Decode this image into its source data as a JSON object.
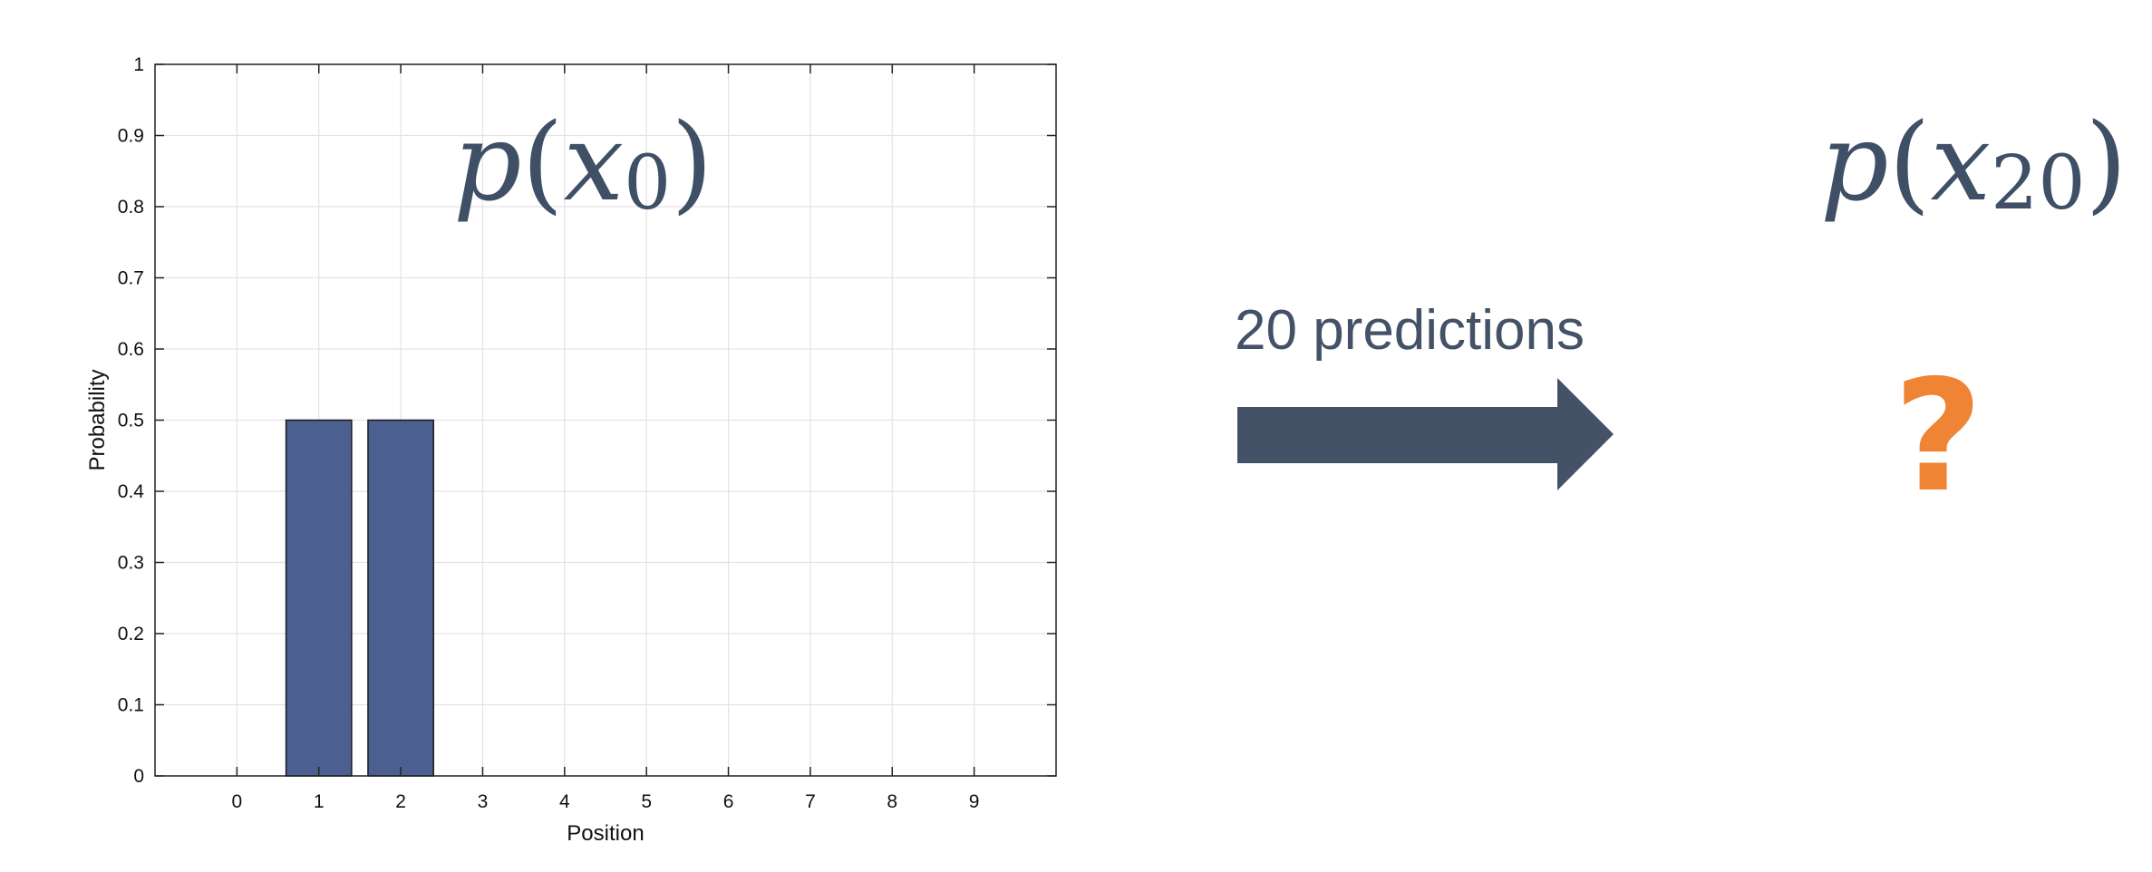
{
  "chart_data": {
    "type": "bar",
    "xlabel": "Position",
    "ylabel": "Probability",
    "categories": [
      "0",
      "1",
      "2",
      "3",
      "4",
      "5",
      "6",
      "7",
      "8",
      "9"
    ],
    "values": [
      0,
      0.5,
      0.5,
      0,
      0,
      0,
      0,
      0,
      0,
      0
    ],
    "xlim": [
      -1,
      10
    ],
    "ylim": [
      0,
      1
    ],
    "yticks": [
      "0",
      "0.1",
      "0.2",
      "0.3",
      "0.4",
      "0.5",
      "0.6",
      "0.7",
      "0.8",
      "0.9",
      "1"
    ],
    "grid": true,
    "bar_color": "#4b6090"
  },
  "annotations": {
    "p_x0": {
      "p": "p",
      "open": "(",
      "x": "x",
      "sub": "0",
      "close": ")"
    },
    "p_x20": {
      "p": "p",
      "open": "(",
      "x": "x",
      "sub": "20",
      "close": ")"
    },
    "arrow_label": "20 predictions",
    "unknown": "?"
  },
  "colors": {
    "text": "#445268",
    "arrow": "#445268",
    "accent": "#ee8434"
  }
}
